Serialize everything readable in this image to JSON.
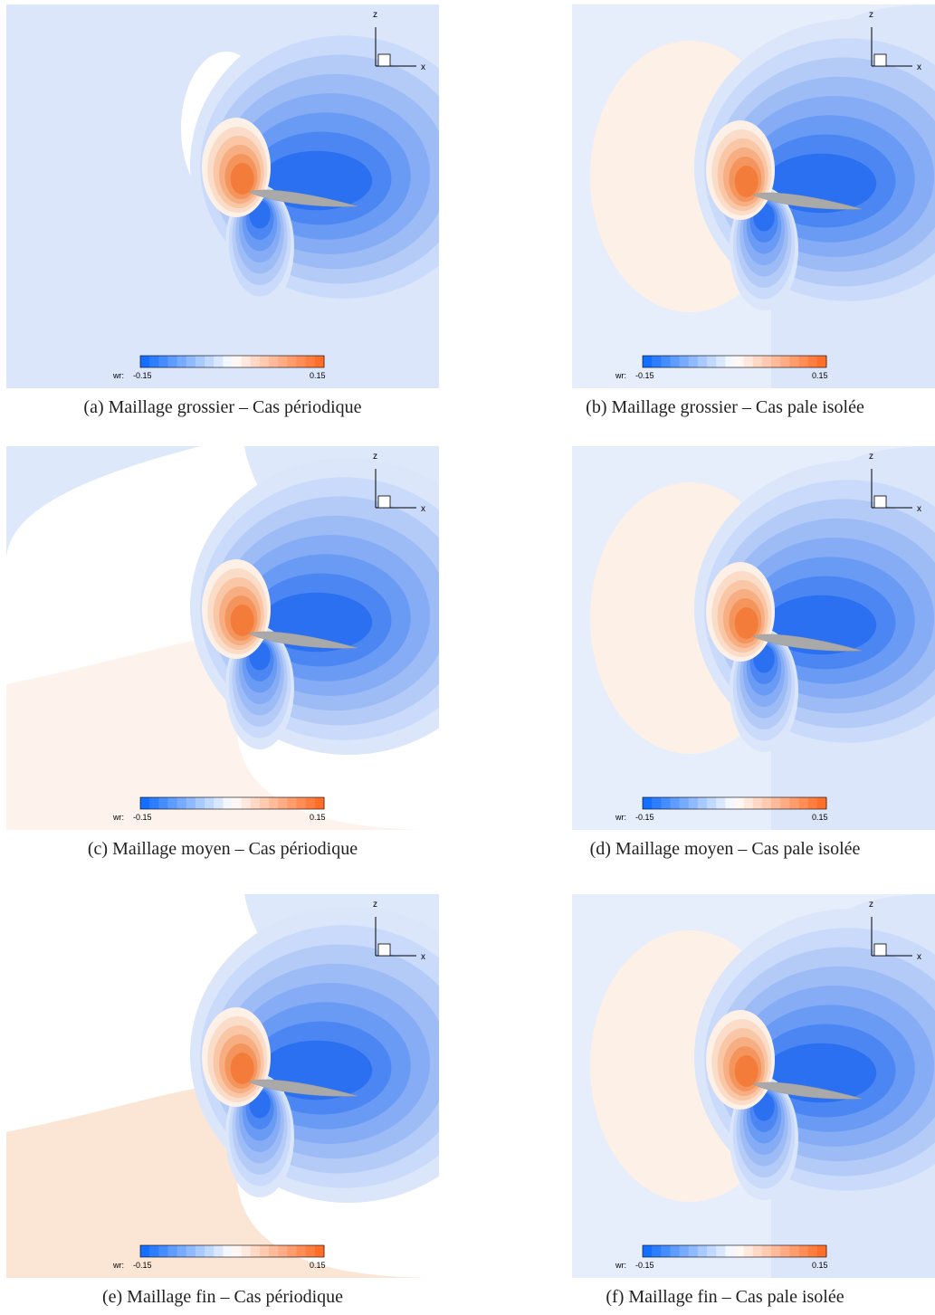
{
  "panels": [
    {
      "caption": "(a) Maillage grossier – Cas périodique",
      "axes": {
        "z": "z",
        "x": "x"
      },
      "colorbar": {
        "label": "wr:",
        "min": -0.15,
        "max": 0.15
      }
    },
    {
      "caption": "(b) Maillage grossier – Cas pale isolée",
      "axes": {
        "z": "z",
        "x": "x"
      },
      "colorbar": {
        "label": "wr:",
        "min": -0.15,
        "max": 0.15
      }
    },
    {
      "caption": "(c) Maillage moyen – Cas périodique",
      "axes": {
        "z": "z",
        "x": "x"
      },
      "colorbar": {
        "label": "wr:",
        "min": -0.15,
        "max": 0.15
      }
    },
    {
      "caption": "(d) Maillage moyen – Cas pale isolée",
      "axes": {
        "z": "z",
        "x": "x"
      },
      "colorbar": {
        "label": "wr:",
        "min": -0.15,
        "max": 0.15
      }
    },
    {
      "caption": "(e) Maillage fin – Cas périodique",
      "axes": {
        "z": "z",
        "x": "x"
      },
      "colorbar": {
        "label": "wr:",
        "min": -0.15,
        "max": 0.15
      }
    },
    {
      "caption": "(f) Maillage fin – Cas pale isolée",
      "axes": {
        "z": "z",
        "x": "x"
      },
      "colorbar": {
        "label": "wr:",
        "min": -0.15,
        "max": 0.15
      }
    }
  ]
}
